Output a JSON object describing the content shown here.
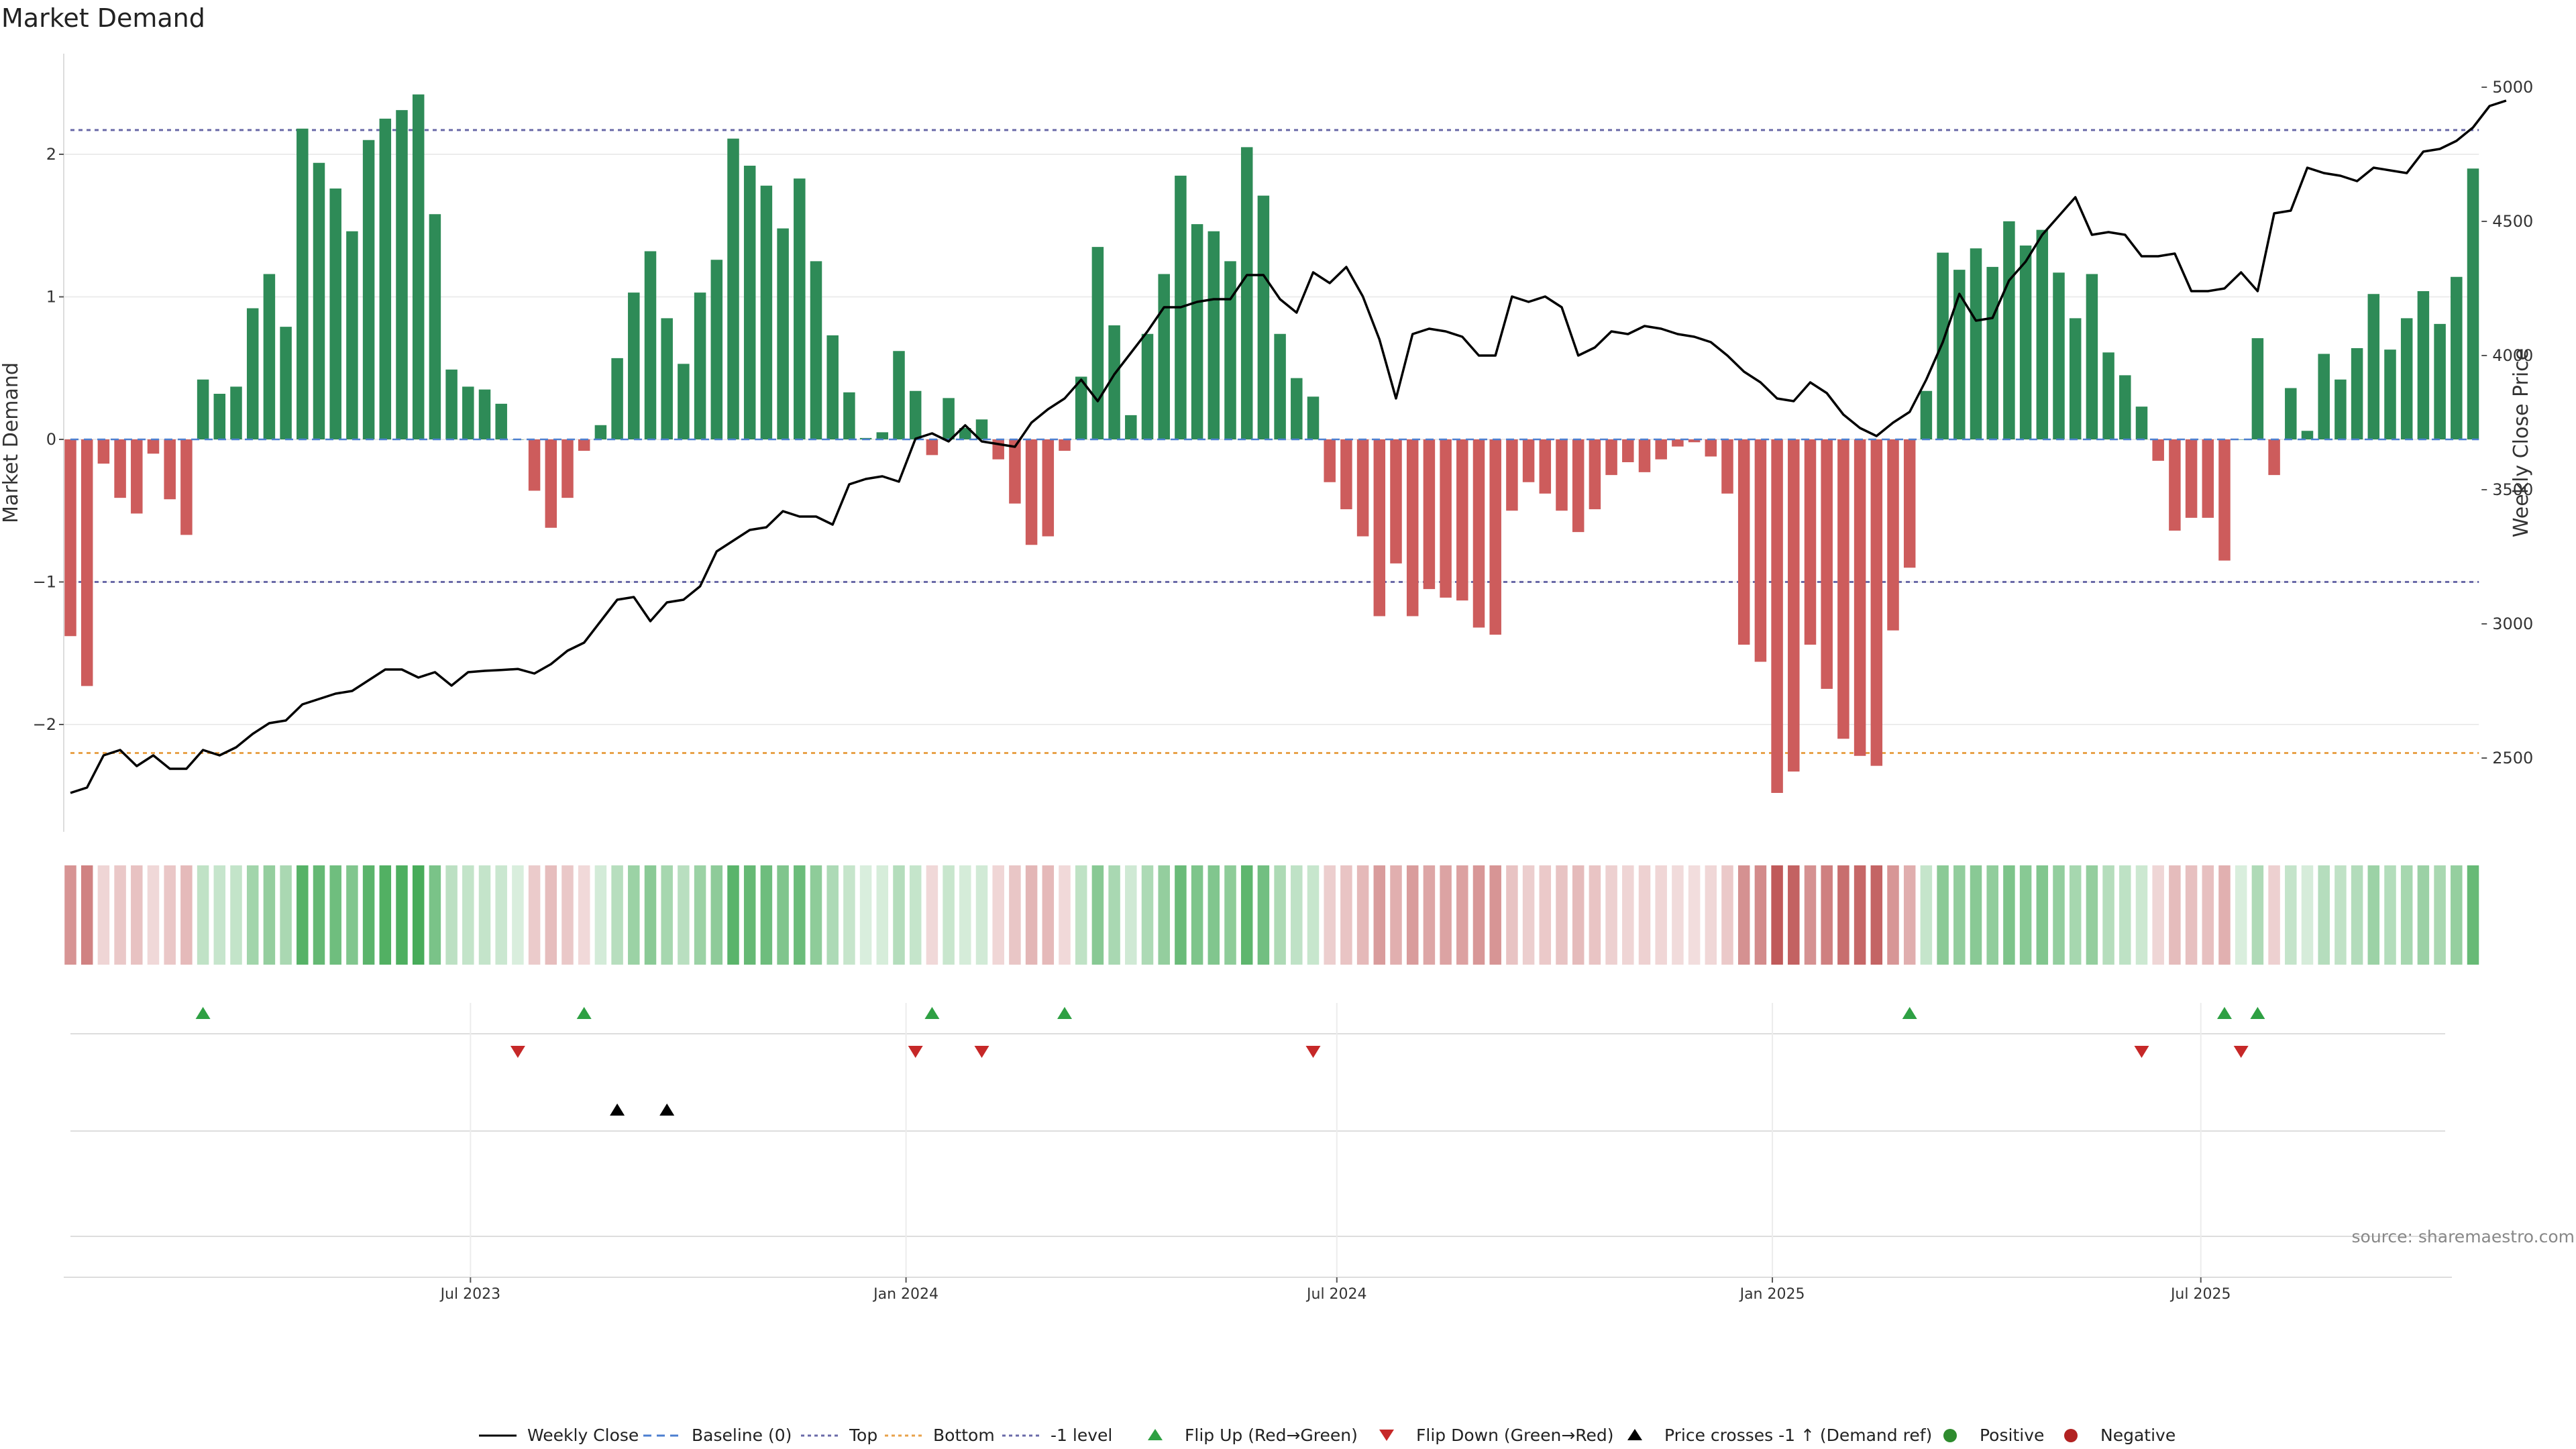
{
  "title": "Market Demand",
  "source": "source: sharemaestro.com",
  "colors": {
    "positive": "#2e8b57",
    "negative": "#cd5c5c",
    "price": "#000000",
    "top": "#6a6aa8",
    "bottom": "#e8a24a",
    "minus1": "#6a6aa8",
    "baseline": "#4c7fd0",
    "flip_up": "#2ea043",
    "flip_down": "#c62828",
    "cross": "#000000"
  },
  "chart_data": {
    "type": "bar",
    "title": "Market Demand",
    "ylabel": "Market Demand",
    "y2label": "Weekly Close Price",
    "ylim": [
      -2.75,
      2.72
    ],
    "y2lim": [
      2300,
      5050
    ],
    "yticks": [
      "2",
      "1",
      "0",
      "−1",
      "−2"
    ],
    "y2ticks": [
      "5000",
      "4500",
      "4000",
      "3500",
      "3000",
      "2500"
    ],
    "xticks": [
      "Jul 2023",
      "Jan 2024",
      "Jul 2024",
      "Jan 2025",
      "Jul 2025"
    ],
    "x_start": "2023-01-13",
    "x_step_days": 7,
    "grid": true,
    "legend_position": "bottom",
    "top_level": 2.17,
    "bottom_level": -2.2,
    "minus1_level": -1.0,
    "demand": [
      -1.38,
      -1.73,
      -0.17,
      -0.41,
      -0.52,
      -0.1,
      -0.42,
      -0.67,
      0.42,
      0.32,
      0.37,
      0.92,
      1.16,
      0.79,
      2.18,
      1.94,
      1.76,
      1.46,
      2.1,
      2.25,
      2.31,
      2.42,
      1.58,
      0.49,
      0.37,
      0.35,
      0.25,
      0.0,
      -0.36,
      -0.62,
      -0.41,
      -0.08,
      0.1,
      0.57,
      1.03,
      1.32,
      0.85,
      0.53,
      1.03,
      1.26,
      2.11,
      1.92,
      1.78,
      1.48,
      1.83,
      1.25,
      0.73,
      0.33,
      0.01,
      0.05,
      0.62,
      0.34,
      -0.11,
      0.29,
      0.08,
      0.14,
      -0.14,
      -0.45,
      -0.74,
      -0.68,
      -0.08,
      0.44,
      1.35,
      0.8,
      0.17,
      0.74,
      1.16,
      1.85,
      1.51,
      1.46,
      1.25,
      2.05,
      1.71,
      0.74,
      0.43,
      0.3,
      -0.3,
      -0.49,
      -0.68,
      -1.24,
      -0.87,
      -1.24,
      -1.05,
      -1.11,
      -1.13,
      -1.32,
      -1.37,
      -0.5,
      -0.3,
      -0.38,
      -0.5,
      -0.65,
      -0.49,
      -0.25,
      -0.16,
      -0.23,
      -0.14,
      -0.05,
      -0.02,
      -0.12,
      -0.38,
      -1.44,
      -1.56,
      -2.48,
      -2.33,
      -1.44,
      -1.75,
      -2.1,
      -2.22,
      -2.29,
      -1.34,
      -0.9,
      0.34,
      1.31,
      1.19,
      1.34,
      1.21,
      1.53,
      1.36,
      1.47,
      1.17,
      0.85,
      1.16,
      0.61,
      0.45,
      0.23,
      -0.15,
      -0.64,
      -0.55,
      -0.55,
      -0.85,
      0.0,
      0.71,
      -0.25,
      0.36,
      0.06,
      0.6,
      0.42,
      0.64,
      1.02,
      0.63,
      0.85,
      1.04,
      0.81,
      1.14,
      1.9
    ],
    "price": [
      2370,
      2390,
      2510,
      2530,
      2470,
      2510,
      2460,
      2460,
      2530,
      2510,
      2540,
      2590,
      2630,
      2640,
      2700,
      2720,
      2740,
      2750,
      2790,
      2830,
      2830,
      2800,
      2820,
      2770,
      2820,
      2825,
      2828,
      2832,
      2815,
      2850,
      2900,
      2930,
      3010,
      3090,
      3100,
      3010,
      3080,
      3090,
      3140,
      3270,
      3310,
      3350,
      3360,
      3420,
      3400,
      3400,
      3370,
      3520,
      3540,
      3550,
      3530,
      3690,
      3710,
      3680,
      3740,
      3680,
      3670,
      3660,
      3750,
      3800,
      3840,
      3910,
      3830,
      3930,
      4010,
      4090,
      4180,
      4180,
      4200,
      4210,
      4210,
      4300,
      4300,
      4210,
      4160,
      4310,
      4270,
      4330,
      4220,
      4060,
      3840,
      4080,
      4100,
      4090,
      4070,
      4000,
      4000,
      4220,
      4200,
      4220,
      4180,
      4000,
      4030,
      4090,
      4080,
      4110,
      4100,
      4080,
      4070,
      4050,
      4000,
      3940,
      3900,
      3840,
      3830,
      3900,
      3860,
      3780,
      3730,
      3700,
      3750,
      3790,
      3910,
      4050,
      4230,
      4130,
      4140,
      4280,
      4350,
      4450,
      4520,
      4590,
      4450,
      4460,
      4450,
      4370,
      4370,
      4380,
      4240,
      4240,
      4250,
      4310,
      4240,
      4530,
      4540,
      4700,
      4680,
      4670,
      4650,
      4700,
      4690,
      4680,
      4760,
      4770,
      4800,
      4850,
      4930,
      4950
    ],
    "flip_up": [
      8,
      31,
      52,
      60,
      111,
      130,
      132
    ],
    "flip_down": [
      27,
      51,
      55,
      75,
      125,
      131
    ],
    "price_crosses": [
      33,
      36
    ]
  },
  "legend": [
    {
      "label": "Weekly Close",
      "symbol": "line-solid"
    },
    {
      "label": "Baseline (0)",
      "symbol": "line-dash"
    },
    {
      "label": "Top",
      "symbol": "line-dot-purple"
    },
    {
      "label": "Bottom",
      "symbol": "line-dot-orange"
    },
    {
      "label": "-1 level",
      "symbol": "line-dot-purple"
    },
    {
      "label": "Flip Up (Red→Green)",
      "symbol": "triangle-up-green"
    },
    {
      "label": "Flip Down (Green→Red)",
      "symbol": "triangle-down-red"
    },
    {
      "label": "Price crosses -1 ↑ (Demand ref)",
      "symbol": "triangle-up-black"
    },
    {
      "label": "Positive",
      "symbol": "circle-green"
    },
    {
      "label": "Negative",
      "symbol": "circle-red"
    }
  ]
}
